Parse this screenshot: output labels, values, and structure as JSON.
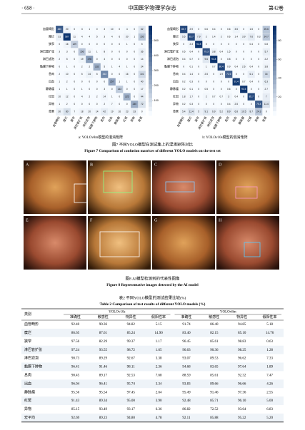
{
  "header": {
    "page": "· 698 ·",
    "journal": "中国医学物理学杂志",
    "volume": "第42卷"
  },
  "figure7": {
    "classes": [
      "血管畸形",
      "糜烂",
      "狭窄",
      "淋巴管扩张",
      "淋巴滤泡",
      "黏膜下肿物",
      "息肉",
      "出血",
      "静脉瘤",
      "红斑",
      "异物",
      "背景"
    ],
    "a": {
      "caption": "a: YOLOv8m模型的混淆矩阵",
      "colorbar_ticks": [
        100,
        200,
        300,
        400,
        500
      ],
      "matrix": [
        [
          480,
          20,
          0,
          3,
          1,
          0,
          3,
          10,
          0,
          4,
          0,
          62
        ],
        [
          31,
          587,
          11,
          4,
          4,
          5,
          3,
          4,
          6,
          20,
          1,
          155
        ],
        [
          0,
          16,
          129,
          0,
          0,
          0,
          0,
          0,
          0,
          1,
          0,
          5
        ],
        [
          3,
          3,
          0,
          156,
          11,
          1,
          8,
          0,
          0,
          0,
          0,
          36
        ],
        [
          2,
          5,
          0,
          19,
          276,
          0,
          4,
          0,
          0,
          0,
          0,
          14
        ],
        [
          0,
          1,
          0,
          2,
          2,
          232,
          5,
          1,
          4,
          1,
          0,
          24
        ],
        [
          2,
          10,
          0,
          5,
          24,
          5,
          343,
          0,
          0,
          16,
          0,
          101
        ],
        [
          1,
          2,
          0,
          0,
          0,
          0,
          0,
          257,
          1,
          1,
          0,
          40
        ],
        [
          1,
          1,
          0,
          1,
          0,
          0,
          3,
          0,
          143,
          0,
          0,
          17
        ],
        [
          10,
          12,
          0,
          4,
          2,
          2,
          14,
          1,
          0,
          225,
          0,
          44
        ],
        [
          1,
          2,
          0,
          0,
          0,
          0,
          2,
          7,
          0,
          0,
          230,
          72
        ],
        [
          30,
          80,
          7,
          18,
          20,
          14,
          42,
          19,
          16,
          23,
          33,
          0
        ]
      ]
    },
    "b": {
      "caption": "b: YOLOv10s模型的混淆矩阵",
      "colorbar_ticks": [
        20,
        40,
        60,
        80
      ],
      "matrix": [
        [
          85.7,
          2.9,
          0.0,
          0.6,
          0.4,
          0.0,
          0.6,
          3.5,
          0.0,
          1.5,
          0.0,
          25.6
        ],
        [
          5.5,
          83.7,
          7.9,
          2.0,
          1.4,
          2.0,
          0.6,
          1.4,
          3.9,
          7.6,
          0.3,
          24.7
        ],
        [
          0.0,
          2.3,
          92.8,
          0.0,
          0.0,
          0.0,
          0.0,
          0.0,
          0.0,
          0.4,
          0.0,
          0.8
        ],
        [
          0.5,
          0.4,
          0.0,
          79.3,
          3.8,
          0.4,
          1.5,
          0.0,
          0.0,
          0.0,
          0.0,
          5.7
        ],
        [
          0.4,
          0.7,
          0.0,
          9.6,
          94.8,
          0.0,
          0.8,
          0.0,
          0.0,
          0.0,
          0.0,
          2.2
        ],
        [
          0.0,
          0.1,
          0.0,
          1.0,
          0.7,
          86.4,
          0.9,
          0.4,
          2.6,
          0.4,
          0.0,
          3.8
        ],
        [
          0.4,
          1.4,
          0.0,
          2.5,
          0.0,
          1.9,
          72.6,
          0.0,
          0.0,
          6.1,
          0.0,
          16.0
        ],
        [
          0.2,
          0.3,
          0.0,
          0.0,
          0.0,
          0.0,
          0.0,
          91.4,
          0.7,
          0.4,
          0.0,
          6.3
        ],
        [
          0.2,
          0.1,
          0.0,
          0.5,
          0.0,
          0.0,
          0.6,
          0.0,
          93.5,
          0.0,
          0.0,
          2.7
        ],
        [
          1.8,
          1.7,
          0.0,
          2.0,
          0.7,
          0.7,
          3.0,
          0.4,
          0.0,
          85.7,
          0.0,
          7.0
        ],
        [
          0.2,
          0.3,
          0.0,
          0.0,
          0.0,
          0.0,
          0.4,
          2.5,
          0.0,
          0.0,
          75.4,
          11.4
        ],
        [
          5.4,
          11.4,
          5.0,
          9.1,
          6.9,
          5.2,
          8.9,
          6.8,
          10.5,
          8.7,
          24.3,
          0.0
        ]
      ]
    },
    "caption_cn": "图7 不同YOLO模型在测试集上的混淆矩阵对比",
    "caption_en": "Figure 7 Comparison of confusion matrices of different YOLO models on the test set"
  },
  "figure8": {
    "panels": [
      "A",
      "B",
      "C",
      "D",
      "E",
      "F",
      "G",
      "H"
    ],
    "caption_cn": "图8 AI模型检测到的代表性图像",
    "caption_en": "Figure 8 Representative images detected by the AI model"
  },
  "table2": {
    "caption_cn": "表2 不同YOLO模型的测试结果比较(%)",
    "caption_en": "Table 2 Comparison of test results of different YOLO models (%)",
    "row_header": "类别",
    "models": [
      "YOLOv10s",
      "YOLOv8m"
    ],
    "metrics": [
      "准确性",
      "敏感性",
      "特异性",
      "假阳性率",
      "准确性",
      "敏感性",
      "特异性",
      "假阳性率"
    ],
    "rows": [
      [
        "血管畸形",
        "92.40",
        "90.36",
        "94.82",
        "5.15",
        "91.74",
        "86.40",
        "94.85",
        "5.18"
      ],
      [
        "糜烂",
        "86.65",
        "87.61",
        "85.24",
        "14.90",
        "83.40",
        "82.15",
        "85.10",
        "14.76"
      ],
      [
        "狭窄",
        "97.56",
        "82.29",
        "99.37",
        "1.17",
        "96.45",
        "85.61",
        "98.83",
        "0.63"
      ],
      [
        "淋巴管扩张",
        "97.24",
        "93.55",
        "98.72",
        "1.65",
        "96.63",
        "90.36",
        "98.25",
        "1.28"
      ],
      [
        "淋巴滤泡",
        "90.73",
        "89.29",
        "92.67",
        "3.38",
        "93.07",
        "89.53",
        "96.62",
        "7.33"
      ],
      [
        "黏膜下肿物",
        "96.41",
        "91.46",
        "98.11",
        "2.36",
        "94.68",
        "83.65",
        "97.64",
        "1.89"
      ],
      [
        "息肉",
        "90.45",
        "89.17",
        "92.53",
        "7.68",
        "88.59",
        "85.61",
        "92.32",
        "7.47"
      ],
      [
        "出血",
        "96.04",
        "96.41",
        "95.74",
        "3.34",
        "93.83",
        "89.66",
        "96.66",
        "4.26"
      ],
      [
        "静脉瘤",
        "95.56",
        "95.54",
        "97.45",
        "2.64",
        "95.49",
        "91.46",
        "97.36",
        "2.55"
      ],
      [
        "红斑",
        "91.43",
        "89.34",
        "95.00",
        "3.90",
        "92.48",
        "85.71",
        "96.10",
        "5.00"
      ],
      [
        "异物",
        "85.15",
        "93.49",
        "93.17",
        "6.36",
        "86.82",
        "72.52",
        "93.64",
        "6.83"
      ],
      [
        "宏平均",
        "92.69",
        "89.23",
        "94.80",
        "4.78",
        "92.11",
        "85.88",
        "95.22",
        "5.20"
      ]
    ]
  }
}
